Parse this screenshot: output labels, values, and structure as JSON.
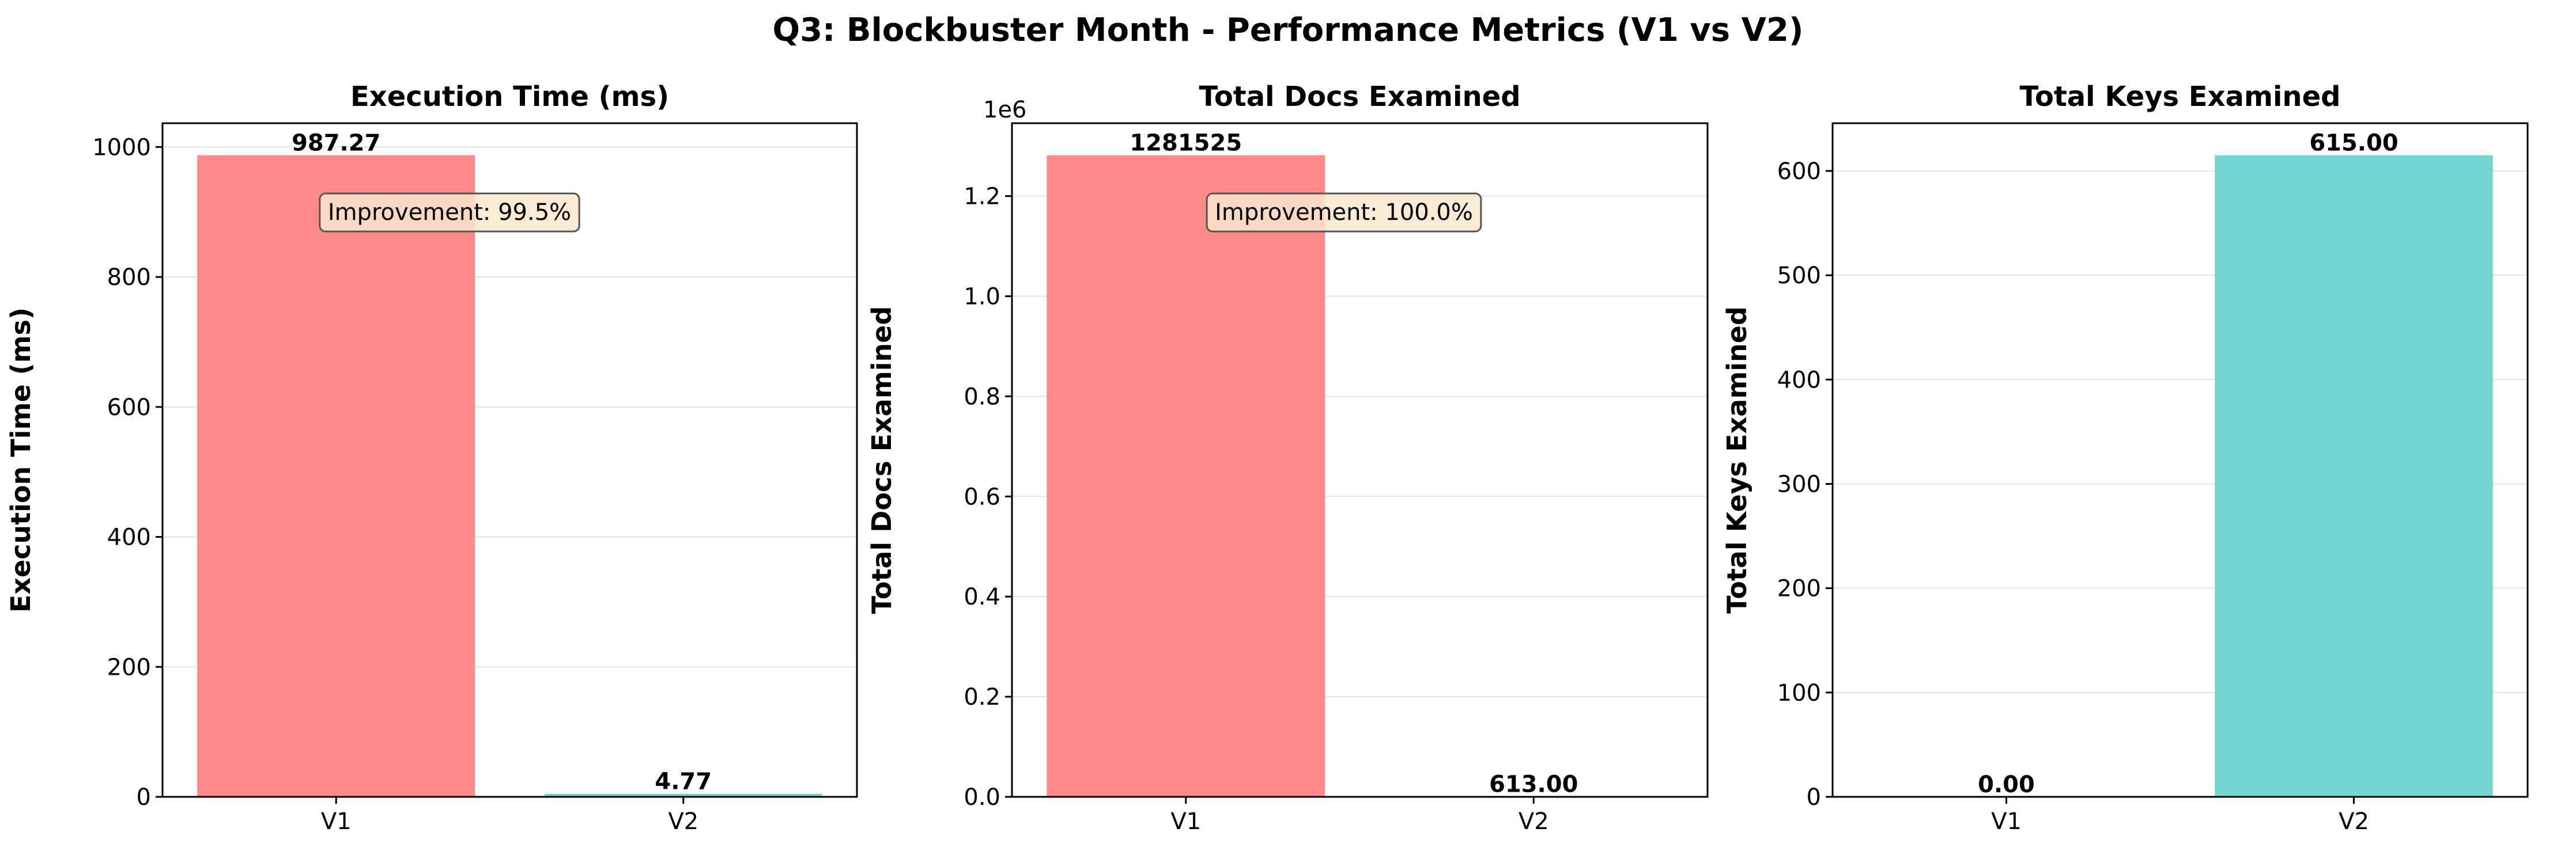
{
  "figure": {
    "title": "Q3: Blockbuster Month - Performance Metrics (V1 vs V2)"
  },
  "colors": {
    "v1": "#ff8a8a",
    "v2": "#74d6cf",
    "annotation_fill": "#f8e6cc",
    "annotation_edge": "#555555",
    "grid": "#e2e2e2"
  },
  "chart_data": [
    {
      "type": "bar",
      "title": "Execution Time (ms)",
      "xlabel": "",
      "ylabel": "Execution Time (ms)",
      "categories": [
        "V1",
        "V2"
      ],
      "values": [
        987.27,
        4.77
      ],
      "value_labels": [
        "987.27",
        "4.77"
      ],
      "ylim": [
        0,
        1036.6
      ],
      "yticks": [
        0,
        200,
        400,
        600,
        800,
        1000
      ],
      "ytick_labels": [
        "0",
        "200",
        "400",
        "600",
        "800",
        "1000"
      ],
      "offset_label": "",
      "annotation": "Improvement: 99.5%",
      "grid": "y"
    },
    {
      "type": "bar",
      "title": "Total Docs Examined",
      "xlabel": "",
      "ylabel": "Total Docs Examined",
      "categories": [
        "V1",
        "V2"
      ],
      "values": [
        1281525,
        613
      ],
      "value_labels": [
        "1281525",
        "613.00"
      ],
      "ylim": [
        0,
        1345601
      ],
      "yticks": [
        0,
        200000,
        400000,
        600000,
        800000,
        1000000,
        1200000
      ],
      "ytick_labels": [
        "0.0",
        "0.2",
        "0.4",
        "0.6",
        "0.8",
        "1.0",
        "1.2"
      ],
      "offset_label": "1e6",
      "annotation": "Improvement: 100.0%",
      "grid": "y"
    },
    {
      "type": "bar",
      "title": "Total Keys Examined",
      "xlabel": "",
      "ylabel": "Total Keys Examined",
      "categories": [
        "V1",
        "V2"
      ],
      "values": [
        0,
        615
      ],
      "value_labels": [
        "0.00",
        "615.00"
      ],
      "ylim": [
        0,
        645.75
      ],
      "yticks": [
        0,
        100,
        200,
        300,
        400,
        500,
        600
      ],
      "ytick_labels": [
        "0",
        "100",
        "200",
        "300",
        "400",
        "500",
        "600"
      ],
      "offset_label": "",
      "annotation": "",
      "grid": "y"
    }
  ]
}
